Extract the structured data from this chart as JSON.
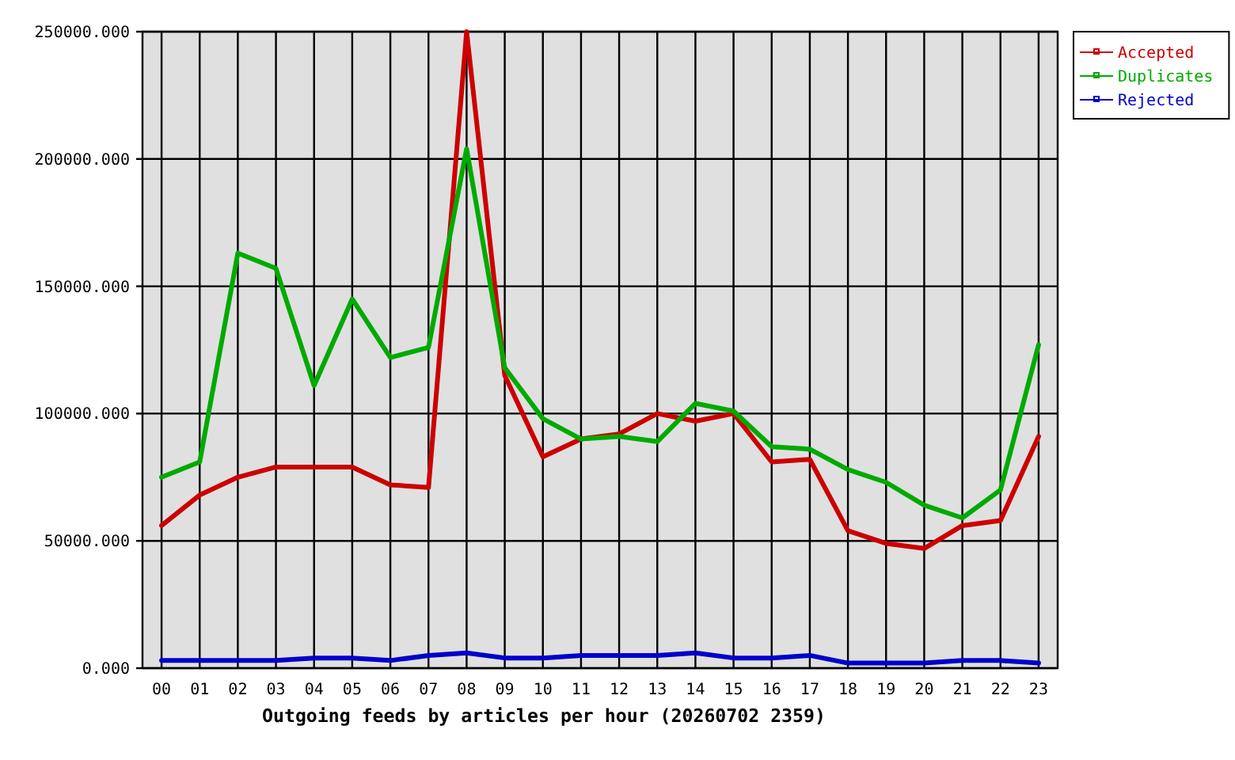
{
  "chart_data": {
    "type": "line",
    "xlabel": "Outgoing feeds by articles per hour (20260702 2359)",
    "categories": [
      "00",
      "01",
      "02",
      "03",
      "04",
      "05",
      "06",
      "07",
      "08",
      "09",
      "10",
      "11",
      "12",
      "13",
      "14",
      "15",
      "16",
      "17",
      "18",
      "19",
      "20",
      "21",
      "22",
      "23"
    ],
    "series": [
      {
        "name": "Accepted",
        "color": "#cc0000",
        "values": [
          56000,
          68000,
          75000,
          79000,
          79000,
          79000,
          72000,
          71000,
          250000,
          115000,
          83000,
          90000,
          92000,
          100000,
          97000,
          100000,
          81000,
          82000,
          54000,
          49000,
          47000,
          56000,
          58000,
          91000
        ]
      },
      {
        "name": "Duplicates",
        "color": "#00aa00",
        "values": [
          75000,
          81000,
          163000,
          157000,
          111000,
          145000,
          122000,
          126000,
          204000,
          118000,
          98000,
          90000,
          91000,
          89000,
          104000,
          101000,
          87000,
          86000,
          78000,
          73000,
          64000,
          59000,
          70000,
          127000
        ]
      },
      {
        "name": "Rejected",
        "color": "#0000cc",
        "values": [
          3000,
          3000,
          3000,
          3000,
          4000,
          4000,
          3000,
          5000,
          6000,
          4000,
          4000,
          5000,
          5000,
          5000,
          6000,
          4000,
          4000,
          5000,
          2000,
          2000,
          2000,
          3000,
          3000,
          2000
        ]
      }
    ],
    "ylim": [
      0,
      250000
    ],
    "yticks": [
      {
        "value": 0,
        "label": "0.000"
      },
      {
        "value": 50000,
        "label": "50000.000"
      },
      {
        "value": 100000,
        "label": "100000.000"
      },
      {
        "value": 150000,
        "label": "150000.000"
      },
      {
        "value": 200000,
        "label": "200000.000"
      },
      {
        "value": 250000,
        "label": "250000.000"
      }
    ],
    "grid": true,
    "legend": "top right"
  }
}
